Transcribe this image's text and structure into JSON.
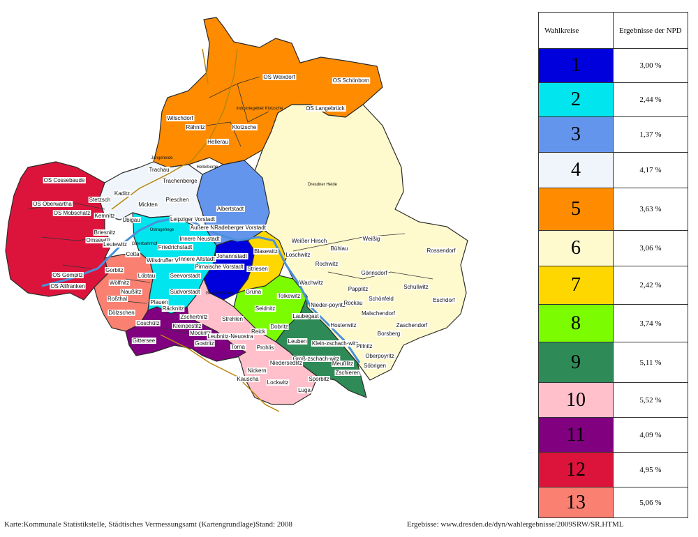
{
  "legend": {
    "header_wahlkreise": "Wahlkreise",
    "header_ergebnisse": "Ergebnisse der NPD",
    "rows": [
      {
        "nr": "1",
        "color": "#0000dd",
        "value": "3,00 %"
      },
      {
        "nr": "2",
        "color": "#00e5ee",
        "value": "2,44 %"
      },
      {
        "nr": "3",
        "color": "#6495ed",
        "value": "1,37 %"
      },
      {
        "nr": "4",
        "color": "#f0f5fb",
        "value": "4,17 %"
      },
      {
        "nr": "5",
        "color": "#ff8c00",
        "value": "3,63 %"
      },
      {
        "nr": "6",
        "color": "#fffacd",
        "value": "3,06 %"
      },
      {
        "nr": "7",
        "color": "#ffd700",
        "value": "2,42 %"
      },
      {
        "nr": "8",
        "color": "#7cfc00",
        "value": "3,74 %"
      },
      {
        "nr": "9",
        "color": "#2e8b57",
        "value": "5,11 %"
      },
      {
        "nr": "10",
        "color": "#ffc0cb",
        "value": "5,52 %"
      },
      {
        "nr": "11",
        "color": "#800080",
        "value": "4,09 %"
      },
      {
        "nr": "12",
        "color": "#dc143c",
        "value": "4,95 %"
      },
      {
        "nr": "13",
        "color": "#fa8072",
        "value": "5,06 %"
      }
    ]
  },
  "map": {
    "labels": [
      "OS Weixdorf",
      "OS Schönborn",
      "OS Langebrück",
      "Wilschdorf",
      "Rähnitz",
      "Industriegebiet Klotzsche",
      "Klotzsche",
      "Hellerau",
      "Hellerberge",
      "Jungeheide",
      "Trachau",
      "Trachenberge",
      "Dresdner Heide",
      "OS Cossebaude",
      "Kaditz",
      "Stetzsch",
      "OS Oberwartha",
      "OS Mobschatz",
      "Mickten",
      "Pieschen",
      "Übigau",
      "Albertstadt",
      "Kemnitz",
      "Leipziger Vorstadt",
      "Äußere Neustadt",
      "Radeberger Vorstadt",
      "Briesnitz",
      "Ostragehege",
      "Innere Neustadt",
      "Omsewitz",
      "Leutewitz",
      "Güterbahnhof",
      "Friedrichstadt",
      "Blasewitz",
      "Weißer Hirsch",
      "Weißig",
      "Rossendorf",
      "Cotta",
      "Wilsdruffer Vorstadt",
      "Innere Altstadt",
      "Johannstadt",
      "Bühlau",
      "Loschwitz",
      "Gorbitz",
      "Pirnaische Vorstadt",
      "Striesen",
      "Rochwitz",
      "Gönnsdorf",
      "OS Gompitz",
      "Löbtau",
      "Seevorstadt",
      "OS Altfranken",
      "Wölfnitz",
      "Wachwitz",
      "Papplitz",
      "Schullwitz",
      "Naußlitz",
      "Großer Garten",
      "Gruna",
      "Tolkewitz",
      "Schönfeld",
      "Roßthal",
      "Südvorstadt",
      "Plauen",
      "Seidnitz",
      "Nieder-poyritz",
      "Rockau",
      "Eschdorf",
      "Malschendorf",
      "Dölzschen",
      "Räcknitz",
      "Laubegast",
      "Coschütz",
      "Zschertnitz",
      "Strehlen",
      "Dobritz",
      "Hosterwitz",
      "Zaschendorf",
      "Kleinpestitz",
      "Mockritz",
      "Leubnitz-Neuostra",
      "Reick",
      "Borsberg",
      "Gittersee",
      "Gostritz",
      "Torna",
      "Prohlis",
      "Leuben",
      "Klein-zschach-witz",
      "Pillnitz",
      "Oberpoyritz",
      "Söbrigen",
      "Groß-zschach-witz",
      "Meußlitz",
      "Niedersedlitz",
      "Zschieren",
      "Nickern",
      "Kauscha",
      "Sporbitz",
      "Lockwitz",
      "Luga"
    ]
  },
  "footer": {
    "left": "Karte:Kommunale Statistikstelle, Städtisches Vermessungsamt (Kartengrundlage)Stand: 2008",
    "right": "Ergebisse: www.dresden.de/dyn/wahlergebnisse/2009SRW/SR.HTML"
  }
}
